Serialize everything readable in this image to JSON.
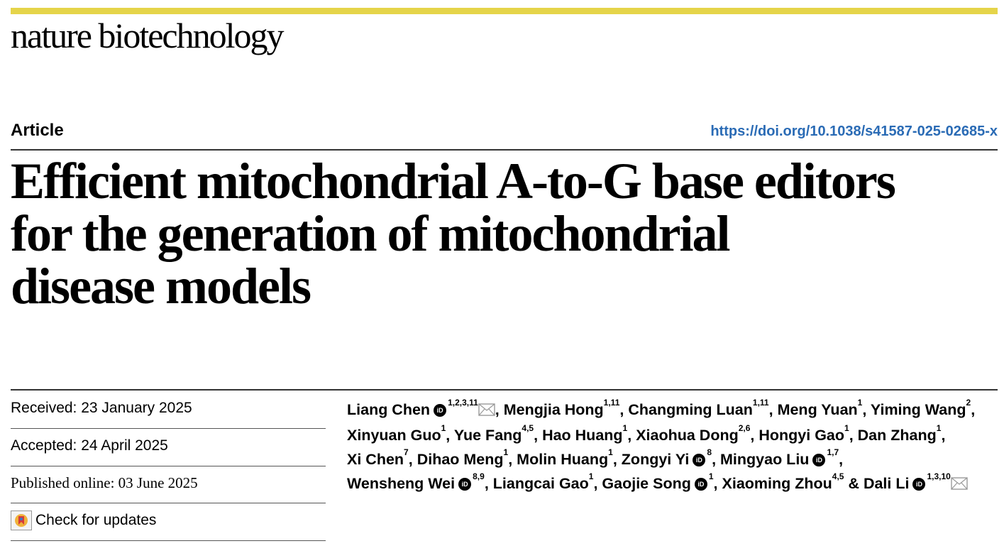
{
  "journal": "nature biotechnology",
  "article_type": "Article",
  "doi": "https://doi.org/10.1038/s41587-025-02685-x",
  "title_lines": [
    "Efficient mitochondrial A-to-G base editors",
    "for the generation of mitochondrial",
    "disease models"
  ],
  "dates": {
    "received": "Received: 23 January 2025",
    "accepted": "Accepted: 24 April 2025",
    "published": "Published online: 03 June 2025"
  },
  "check_updates": "Check for updates",
  "icons": {
    "orcid": "orcid-icon",
    "email": "envelope-icon",
    "updates": "crossmark-icon"
  },
  "colors": {
    "accent_bar": "#e5d44a",
    "doi_link": "#2a6bb5"
  },
  "authors": [
    {
      "name": "Liang Chen",
      "orcid": true,
      "aff": "1,2,3,11",
      "email": true,
      "sep": ", "
    },
    {
      "name": "Mengjia Hong",
      "orcid": false,
      "aff": "1,11",
      "email": false,
      "sep": ", "
    },
    {
      "name": "Changming Luan",
      "orcid": false,
      "aff": "1,11",
      "email": false,
      "sep": ", "
    },
    {
      "name": "Meng Yuan",
      "orcid": false,
      "aff": "1",
      "email": false,
      "sep": ", "
    },
    {
      "name": "Yiming Wang",
      "orcid": false,
      "aff": "2",
      "email": false,
      "sep": ", "
    },
    {
      "name": "Xinyuan Guo",
      "orcid": false,
      "aff": "1",
      "email": false,
      "sep": ", "
    },
    {
      "name": "Yue Fang",
      "orcid": false,
      "aff": "4,5",
      "email": false,
      "sep": ", "
    },
    {
      "name": "Hao Huang",
      "orcid": false,
      "aff": "1",
      "email": false,
      "sep": ", "
    },
    {
      "name": "Xiaohua Dong",
      "orcid": false,
      "aff": "2,6",
      "email": false,
      "sep": ", "
    },
    {
      "name": "Hongyi Gao",
      "orcid": false,
      "aff": "1",
      "email": false,
      "sep": ", "
    },
    {
      "name": "Dan Zhang",
      "orcid": false,
      "aff": "1",
      "email": false,
      "sep": ", "
    },
    {
      "name": "Xi Chen",
      "orcid": false,
      "aff": "7",
      "email": false,
      "sep": ", "
    },
    {
      "name": "Dihao Meng",
      "orcid": false,
      "aff": "1",
      "email": false,
      "sep": ", "
    },
    {
      "name": "Molin Huang",
      "orcid": false,
      "aff": "1",
      "email": false,
      "sep": ", "
    },
    {
      "name": "Zongyi Yi",
      "orcid": true,
      "aff": "8",
      "email": false,
      "sep": ", "
    },
    {
      "name": "Mingyao Liu",
      "orcid": true,
      "aff": "1,7",
      "email": false,
      "sep": ", "
    },
    {
      "name": "Wensheng Wei",
      "orcid": true,
      "aff": "8,9",
      "email": false,
      "sep": ", "
    },
    {
      "name": "Liangcai Gao",
      "orcid": false,
      "aff": "1",
      "email": false,
      "sep": ", "
    },
    {
      "name": "Gaojie Song",
      "orcid": true,
      "aff": "1",
      "email": false,
      "sep": ", "
    },
    {
      "name": "Xiaoming Zhou",
      "orcid": false,
      "aff": "4,5",
      "email": false,
      "sep": " & "
    },
    {
      "name": "Dali Li",
      "orcid": true,
      "aff": "1,3,10",
      "email": true,
      "sep": ""
    }
  ]
}
